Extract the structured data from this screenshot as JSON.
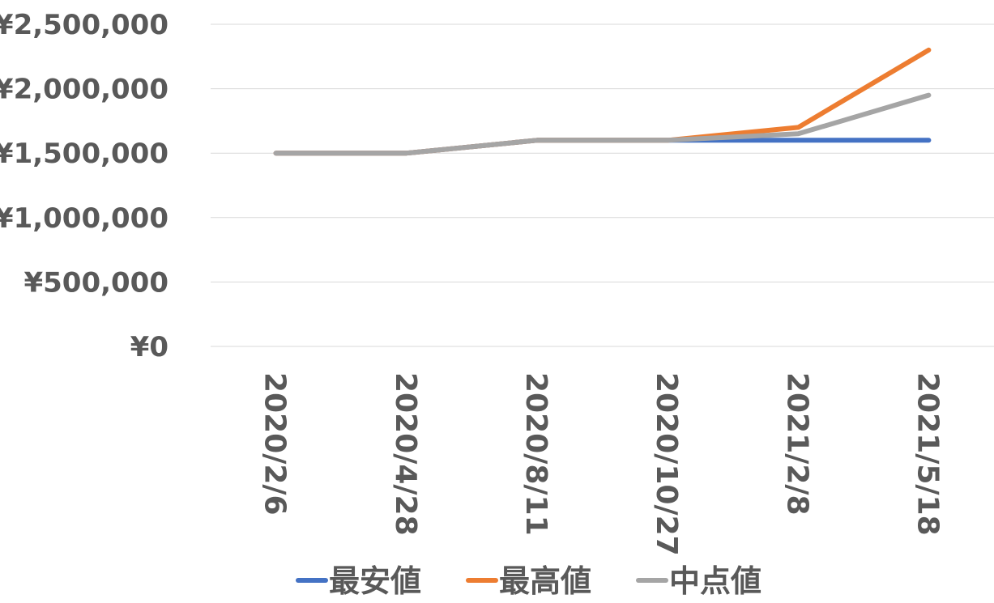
{
  "chart_data": {
    "type": "line",
    "title": "",
    "xlabel": "",
    "ylabel": "",
    "categories": [
      "2020/2/6",
      "2020/4/28",
      "2020/8/11",
      "2020/10/27",
      "2021/2/8",
      "2021/5/18"
    ],
    "ylim": [
      0,
      2500000
    ],
    "y_ticks": [
      0,
      500000,
      1000000,
      1500000,
      2000000,
      2500000
    ],
    "y_tick_labels": [
      "¥0",
      "¥500,000",
      "¥1,000,000",
      "¥1,500,000",
      "¥2,000,000",
      "¥2,500,000"
    ],
    "grid": "horizontal",
    "legend_position": "bottom",
    "series": [
      {
        "name": "最安値",
        "color": "#4472c4",
        "values": [
          1500000,
          1500000,
          1600000,
          1600000,
          1600000,
          1600000
        ]
      },
      {
        "name": "最高値",
        "color": "#ed7d31",
        "values": [
          1500000,
          1500000,
          1600000,
          1600000,
          1700000,
          2300000
        ]
      },
      {
        "name": "中点値",
        "color": "#a5a5a5",
        "values": [
          1500000,
          1500000,
          1600000,
          1600000,
          1650000,
          1950000
        ]
      }
    ]
  }
}
